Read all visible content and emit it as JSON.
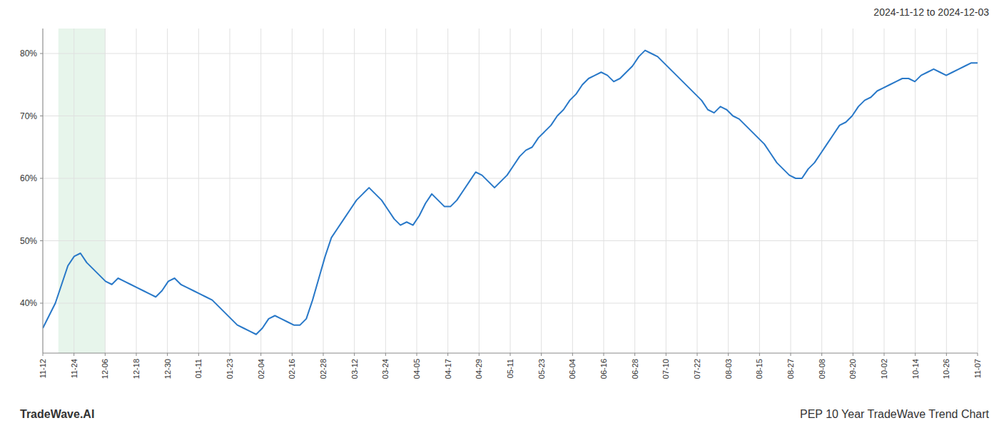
{
  "chart_data": {
    "type": "line",
    "title": "2024-11-12 to 2024-12-03",
    "annotations": [
      "TradeWave.AI",
      "PEP 10 Year TradeWave Trend Chart"
    ],
    "color": "#2878c8",
    "grid": true,
    "shaded_range": {
      "start": 0.5,
      "end": 2.0,
      "color": "#d4edda"
    },
    "xlim": [
      0,
      30
    ],
    "xticks": [
      {
        "value": 0,
        "label": "11-12"
      },
      {
        "value": 1,
        "label": "11-24"
      },
      {
        "value": 2,
        "label": "12-06"
      },
      {
        "value": 3,
        "label": "12-18"
      },
      {
        "value": 4,
        "label": "12-30"
      },
      {
        "value": 5,
        "label": "01-11"
      },
      {
        "value": 6,
        "label": "01-23"
      },
      {
        "value": 7,
        "label": "02-04"
      },
      {
        "value": 8,
        "label": "02-16"
      },
      {
        "value": 9,
        "label": "02-28"
      },
      {
        "value": 10,
        "label": "03-12"
      },
      {
        "value": 11,
        "label": "03-24"
      },
      {
        "value": 12,
        "label": "04-05"
      },
      {
        "value": 13,
        "label": "04-17"
      },
      {
        "value": 14,
        "label": "04-29"
      },
      {
        "value": 15,
        "label": "05-11"
      },
      {
        "value": 16,
        "label": "05-23"
      },
      {
        "value": 17,
        "label": "06-04"
      },
      {
        "value": 18,
        "label": "06-16"
      },
      {
        "value": 19,
        "label": "06-28"
      },
      {
        "value": 20,
        "label": "07-10"
      },
      {
        "value": 21,
        "label": "07-22"
      },
      {
        "value": 22,
        "label": "08-03"
      },
      {
        "value": 23,
        "label": "08-15"
      },
      {
        "value": 24,
        "label": "08-27"
      },
      {
        "value": 25,
        "label": "09-08"
      },
      {
        "value": 26,
        "label": "09-20"
      },
      {
        "value": 27,
        "label": "10-02"
      },
      {
        "value": 28,
        "label": "10-14"
      },
      {
        "value": 29,
        "label": "10-26"
      },
      {
        "value": 30,
        "label": "11-07"
      }
    ],
    "ylim": [
      32,
      84
    ],
    "yticks": [
      {
        "value": 40,
        "label": "40%"
      },
      {
        "value": 50,
        "label": "50%"
      },
      {
        "value": 60,
        "label": "60%"
      },
      {
        "value": 70,
        "label": "70%"
      },
      {
        "value": 80,
        "label": "80%"
      }
    ],
    "values": [
      36.0,
      38.0,
      40.0,
      43.0,
      46.0,
      47.5,
      48.0,
      46.5,
      45.5,
      44.5,
      43.5,
      43.0,
      44.0,
      43.5,
      43.0,
      42.5,
      42.0,
      41.5,
      41.0,
      42.0,
      43.5,
      44.0,
      43.0,
      42.5,
      42.0,
      41.5,
      41.0,
      40.5,
      39.5,
      38.5,
      37.5,
      36.5,
      36.0,
      35.5,
      35.0,
      36.0,
      37.5,
      38.0,
      37.5,
      37.0,
      36.5,
      36.5,
      37.5,
      40.5,
      44.0,
      47.5,
      50.5,
      52.0,
      53.5,
      55.0,
      56.5,
      57.5,
      58.5,
      57.5,
      56.5,
      55.0,
      53.5,
      52.5,
      53.0,
      52.5,
      54.0,
      56.0,
      57.5,
      56.5,
      55.5,
      55.5,
      56.5,
      58.0,
      59.5,
      61.0,
      60.5,
      59.5,
      58.5,
      59.5,
      60.5,
      62.0,
      63.5,
      64.5,
      65.0,
      66.5,
      67.5,
      68.5,
      70.0,
      71.0,
      72.5,
      73.5,
      75.0,
      76.0,
      76.5,
      77.0,
      76.5,
      75.5,
      76.0,
      77.0,
      78.0,
      79.5,
      80.5,
      80.0,
      79.5,
      78.5,
      77.5,
      76.5,
      75.5,
      74.5,
      73.5,
      72.5,
      71.0,
      70.5,
      71.5,
      71.0,
      70.0,
      69.5,
      68.5,
      67.5,
      66.5,
      65.5,
      64.0,
      62.5,
      61.5,
      60.5,
      60.0,
      60.0,
      61.5,
      62.5,
      64.0,
      65.5,
      67.0,
      68.5,
      69.0,
      70.0,
      71.5,
      72.5,
      73.0,
      74.0,
      74.5,
      75.0,
      75.5,
      76.0,
      76.0,
      75.5,
      76.5,
      77.0,
      77.5,
      77.0,
      76.5,
      77.0,
      77.5,
      78.0,
      78.5,
      78.5
    ]
  }
}
